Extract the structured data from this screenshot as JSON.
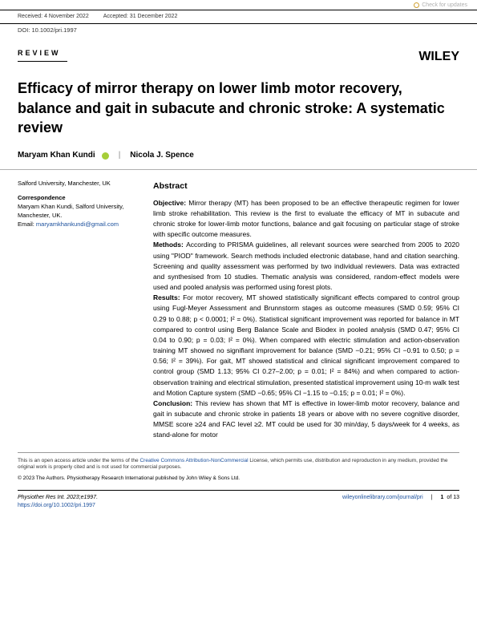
{
  "checkUpdates": "Check for updates",
  "meta": {
    "received": "Received: 4 November 2022",
    "accepted": "Accepted: 31 December 2022",
    "doi": "DOI: 10.1002/pri.1997"
  },
  "header": {
    "reviewLabel": "REVIEW",
    "publisher": "WILEY"
  },
  "title": "Efficacy of mirror therapy on lower limb motor recovery, balance and gait in subacute and chronic stroke: A systematic review",
  "authors": {
    "a1": "Maryam Khan Kundi",
    "sep": "|",
    "a2": "Nicola J. Spence"
  },
  "affiliation": "Salford University, Manchester, UK",
  "correspondence": {
    "label": "Correspondence",
    "body": "Maryam Khan Kundi, Salford University, Manchester, UK.",
    "emailLabel": "Email: ",
    "email": "maryamkhankundi@gmail.com"
  },
  "abstract": {
    "heading": "Abstract",
    "objective": {
      "label": "Objective: ",
      "text": "Mirror therapy (MT) has been proposed to be an effective therapeutic regimen for lower limb stroke rehabilitation. This review is the first to evaluate the efficacy of MT in subacute and chronic stroke for lower-limb motor functions, balance and gait focusing on particular stage of stroke with specific outcome measures."
    },
    "methods": {
      "label": "Methods: ",
      "text": "According to PRISMA guidelines, all relevant sources were searched from 2005 to 2020 using \"PIOD\" framework. Search methods included electronic database, hand and citation searching. Screening and quality assessment was performed by two individual reviewers. Data was extracted and synthesised from 10 studies. Thematic analysis was considered, random-effect models were used and pooled analysis was performed using forest plots."
    },
    "results": {
      "label": "Results: ",
      "text": "For motor recovery, MT showed statistically significant effects compared to control group using Fugl-Meyer Assessment and Brunnstorm stages as outcome measures (SMD 0.59; 95% CI 0.29 to 0.88; p < 0.0001; I² = 0%). Statistical significant improvement was reported for balance in MT compared to control using Berg Balance Scale and Biodex in pooled analysis (SMD 0.47; 95% CI 0.04 to 0.90; p = 0.03; I² = 0%). When compared with electric stimulation and action-observation training MT showed no signifiant improvement for balance (SMD −0.21; 95% CI −0.91 to 0.50; p = 0.56; I² = 39%). For gait, MT showed statistical and clinical significant improvement compared to control group (SMD 1.13; 95% CI 0.27–2.00; p = 0.01; I² = 84%) and when compared to action-observation training and electrical stimulation, presented statistical improvement using 10-m walk test and Motion Capture system (SMD −0.65; 95% CI −1.15 to −0.15; p = 0.01; I² = 0%)."
    },
    "conclusion": {
      "label": "Conclusion: ",
      "text": "This review has shown that MT is effective in lower-limb motor recovery, balance and gait in subacute and chronic stroke in patients 18 years or above with no severe cognitive disorder, MMSE score ≥24 and FAC level ≥2. MT could be used for 30 min/day, 5 days/week for 4 weeks, as stand-alone for motor"
    }
  },
  "license": {
    "prefix": "This is an open access article under the terms of the ",
    "linkText": "Creative Commons Attribution-NonCommercial",
    "suffix": " License, which permits use, distribution and reproduction in any medium, provided the original work is properly cited and is not used for commercial purposes."
  },
  "copyright": "© 2023 The Authors. Physiotherapy Research International published by John Wiley & Sons Ltd.",
  "footer": {
    "leftLine1": "Physiother Res Int. 2023;e1997.",
    "leftLine2": "https://doi.org/10.1002/pri.1997",
    "journalUrl": "wileyonlinelibrary.com/journal/pri",
    "pageNum": "1",
    "pageOf": "of 13"
  }
}
